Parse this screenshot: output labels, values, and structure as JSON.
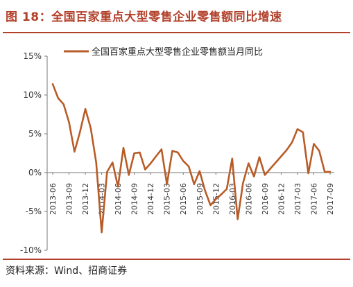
{
  "title": "图 18：全国百家重点大型零售企业零售额同比增速",
  "source": "资料来源：Wind、招商证券",
  "colors": {
    "accent": "#b2412b",
    "series": "#b85c27"
  },
  "chart_data": {
    "type": "line",
    "legend": {
      "position": "top-center",
      "entries": [
        "全国百家重点大型零售企业零售额当月同比"
      ]
    },
    "ylim": [
      -10,
      15
    ],
    "yticks": [
      "15%",
      "10%",
      "5%",
      "0%",
      "-5%",
      "-10%"
    ],
    "ytick_values": [
      15,
      10,
      5,
      0,
      -5,
      -10
    ],
    "xticks": [
      "2013-06",
      "2013-09",
      "2013-12",
      "2014-03",
      "2014-06",
      "2014-09",
      "2014-12",
      "2015-03",
      "2015-06",
      "2015-09",
      "2015-12",
      "2016-03",
      "2016-06",
      "2016-09",
      "2016-12",
      "2017-03",
      "2017-06",
      "2017-09"
    ],
    "grid": false,
    "series": [
      {
        "name": "全国百家重点大型零售企业零售额当月同比",
        "x": [
          "2013-06",
          "2013-07",
          "2013-08",
          "2013-09",
          "2013-10",
          "2013-11",
          "2013-12",
          "2014-01",
          "2014-02",
          "2014-03",
          "2014-04",
          "2014-05",
          "2014-06",
          "2014-07",
          "2014-08",
          "2014-09",
          "2014-10",
          "2014-11",
          "2014-12",
          "2014-01b",
          "2015-02",
          "2015-03",
          "2015-04",
          "2015-05",
          "2015-06",
          "2015-07",
          "2015-08",
          "2015-09",
          "2015-10",
          "2015-11",
          "2015-12",
          "2016-01",
          "2016-02",
          "2016-03",
          "2016-04",
          "2016-05",
          "2016-06",
          "2016-07",
          "2016-08",
          "2016-09",
          "2016-10",
          "2016-11",
          "2016-12",
          "2017-01",
          "2017-02",
          "2017-03",
          "2017-04",
          "2017-05",
          "2017-06",
          "2017-07",
          "2017-08",
          "2017-09"
        ],
        "values": [
          11.4,
          9.6,
          8.8,
          6.5,
          2.7,
          5.2,
          8.2,
          5.7,
          1.3,
          -7.7,
          0.1,
          1.3,
          -1.8,
          3.2,
          -0.3,
          2.5,
          2.6,
          0.4,
          1.2,
          2.1,
          3.0,
          -1.5,
          2.8,
          2.6,
          1.5,
          0.8,
          -1.5,
          0.2,
          -2.3,
          -4.2,
          -3.4,
          -2.8,
          -2.1,
          1.8,
          -6.0,
          -1.3,
          1.2,
          -0.5,
          2.0,
          -0.3,
          0.5,
          1.3,
          2.1,
          2.9,
          3.9,
          5.6,
          5.2,
          -0.1,
          3.7,
          2.8,
          0.1,
          0.1
        ]
      }
    ]
  }
}
